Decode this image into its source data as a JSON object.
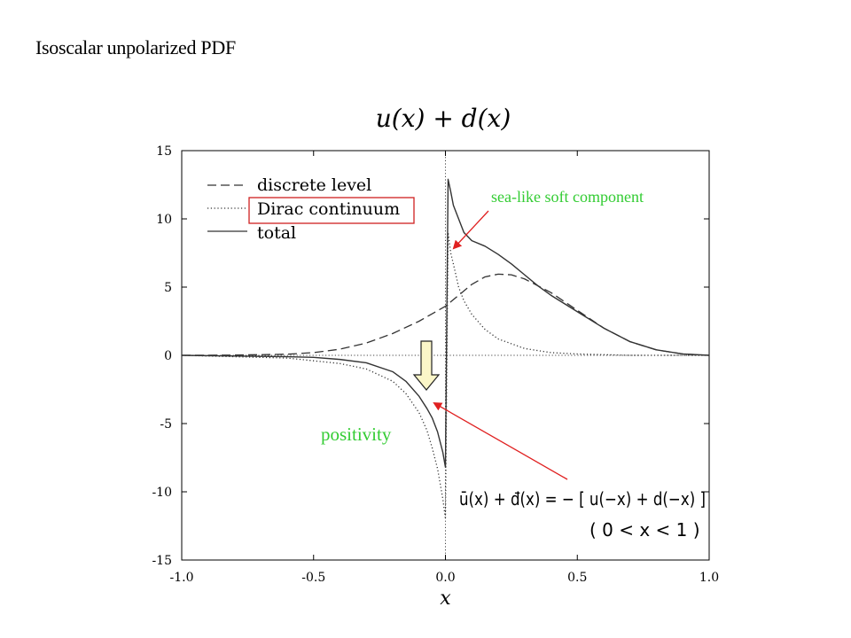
{
  "slide": {
    "title": "Isoscalar unpolarized PDF",
    "callout_sea": "sea-like soft component",
    "callout_positivity": "positivity",
    "formula_line1": "ū(x) + đ(x)  =  − [ u(−x) + d(−x) ]",
    "formula_line2": "( 0 < x < 1 )"
  },
  "chart_data": {
    "type": "line",
    "title": "u(x) + d(x)",
    "xlabel": "x",
    "ylabel": "",
    "xlim": [
      -1.0,
      1.0
    ],
    "ylim": [
      -15,
      15
    ],
    "xticks": [
      "-1.0",
      "-0.5",
      "0.0",
      "0.5",
      "1.0"
    ],
    "yticks": [
      "15",
      "10",
      "5",
      "0",
      "-5",
      "-10",
      "-15"
    ],
    "xtick_values": [
      -1.0,
      -0.5,
      0.0,
      0.5,
      1.0
    ],
    "ytick_values": [
      15,
      10,
      5,
      0,
      -5,
      -10,
      -15
    ],
    "grid": false,
    "legend_position": "top-left",
    "series": [
      {
        "name": "discrete level",
        "style": "dashed",
        "x": [
          -1.0,
          -0.8,
          -0.6,
          -0.5,
          -0.4,
          -0.3,
          -0.2,
          -0.1,
          0.0,
          0.05,
          0.1,
          0.15,
          0.2,
          0.25,
          0.3,
          0.4,
          0.5,
          0.6,
          0.7,
          0.8,
          0.9,
          1.0
        ],
        "y": [
          0.0,
          0.02,
          0.08,
          0.2,
          0.45,
          0.9,
          1.6,
          2.5,
          3.6,
          4.4,
          5.2,
          5.75,
          5.95,
          5.9,
          5.6,
          4.6,
          3.3,
          2.0,
          1.0,
          0.4,
          0.1,
          0.0
        ]
      },
      {
        "name": "Dirac continuum",
        "style": "dotted",
        "x": [
          -1.0,
          -0.6,
          -0.4,
          -0.3,
          -0.2,
          -0.15,
          -0.1,
          -0.07,
          -0.05,
          -0.03,
          -0.01,
          0.0,
          0.01,
          0.02,
          0.03,
          0.05,
          0.07,
          0.1,
          0.15,
          0.2,
          0.3,
          0.4,
          0.5,
          0.7,
          1.0
        ],
        "y": [
          0.0,
          -0.2,
          -0.6,
          -1.0,
          -1.9,
          -2.8,
          -4.2,
          -5.5,
          -6.8,
          -8.3,
          -10.5,
          -12.0,
          9.0,
          7.5,
          6.7,
          5.0,
          4.0,
          3.0,
          1.9,
          1.2,
          0.5,
          0.2,
          0.1,
          0.0,
          0.0
        ]
      },
      {
        "name": "total",
        "style": "solid",
        "x": [
          -1.0,
          -0.6,
          -0.5,
          -0.4,
          -0.3,
          -0.2,
          -0.15,
          -0.1,
          -0.07,
          -0.05,
          -0.03,
          -0.01,
          0.0,
          0.01,
          0.02,
          0.03,
          0.05,
          0.07,
          0.1,
          0.15,
          0.2,
          0.25,
          0.3,
          0.35,
          0.4,
          0.5,
          0.6,
          0.7,
          0.8,
          0.9,
          1.0
        ],
        "y": [
          0.0,
          -0.1,
          -0.15,
          -0.3,
          -0.55,
          -1.2,
          -1.9,
          -3.0,
          -3.9,
          -4.6,
          -5.6,
          -7.1,
          -8.2,
          12.9,
          12.0,
          11.0,
          10.0,
          9.0,
          8.4,
          8.0,
          7.4,
          6.7,
          5.9,
          5.1,
          4.4,
          3.2,
          2.0,
          1.0,
          0.4,
          0.1,
          0.0
        ]
      }
    ]
  }
}
